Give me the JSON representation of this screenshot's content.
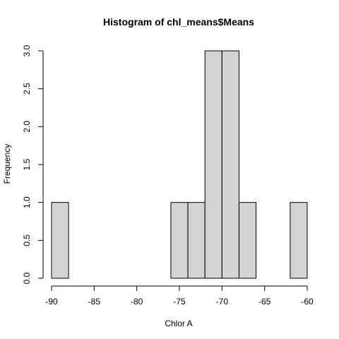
{
  "chart_data": {
    "type": "histogram",
    "title": "Histogram of chl_means$Means",
    "xlabel": "Chlor A",
    "ylabel": "Frequency",
    "xlim": [
      -90,
      -60
    ],
    "ylim": [
      0,
      3
    ],
    "bin_width": 2,
    "bins": [
      {
        "x0": -90,
        "x1": -88,
        "count": 1
      },
      {
        "x0": -88,
        "x1": -86,
        "count": 0
      },
      {
        "x0": -86,
        "x1": -84,
        "count": 0
      },
      {
        "x0": -84,
        "x1": -82,
        "count": 0
      },
      {
        "x0": -82,
        "x1": -80,
        "count": 0
      },
      {
        "x0": -80,
        "x1": -78,
        "count": 0
      },
      {
        "x0": -78,
        "x1": -76,
        "count": 0
      },
      {
        "x0": -76,
        "x1": -74,
        "count": 1
      },
      {
        "x0": -74,
        "x1": -72,
        "count": 1
      },
      {
        "x0": -72,
        "x1": -70,
        "count": 3
      },
      {
        "x0": -70,
        "x1": -68,
        "count": 3
      },
      {
        "x0": -68,
        "x1": -66,
        "count": 1
      },
      {
        "x0": -66,
        "x1": -64,
        "count": 0
      },
      {
        "x0": -64,
        "x1": -62,
        "count": 0
      },
      {
        "x0": -62,
        "x1": -60,
        "count": 1
      }
    ],
    "x_ticks": [
      {
        "value": -90,
        "label": "-90"
      },
      {
        "value": -85,
        "label": "-85"
      },
      {
        "value": -80,
        "label": "-80"
      },
      {
        "value": -75,
        "label": "-75"
      },
      {
        "value": -70,
        "label": "-70"
      },
      {
        "value": -65,
        "label": "-65"
      },
      {
        "value": -60,
        "label": "-60"
      }
    ],
    "y_ticks": [
      {
        "value": 0,
        "label": "0.0"
      },
      {
        "value": 0.5,
        "label": "0.5"
      },
      {
        "value": 1,
        "label": "1.0"
      },
      {
        "value": 1.5,
        "label": "1.5"
      },
      {
        "value": 2,
        "label": "2.0"
      },
      {
        "value": 2.5,
        "label": "2.5"
      },
      {
        "value": 3,
        "label": "3.0"
      }
    ],
    "bar_fill": "#d3d3d3",
    "bar_stroke": "#000000",
    "grid": false,
    "legend": "none"
  }
}
